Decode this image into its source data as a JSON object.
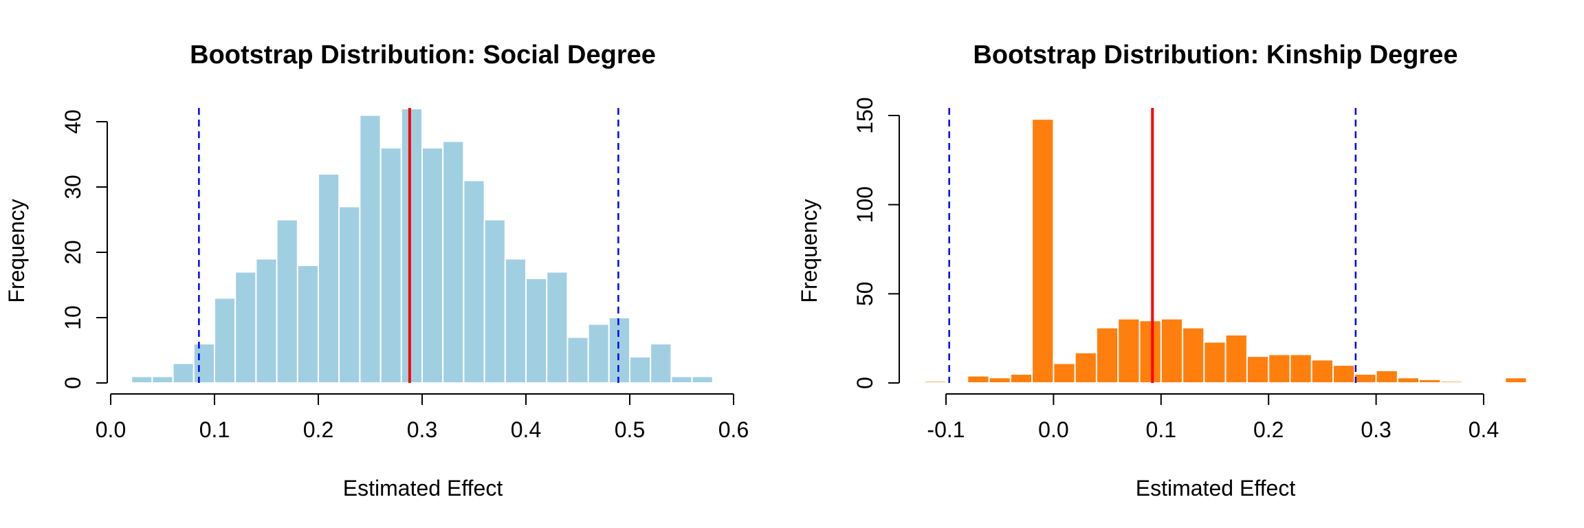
{
  "chart_data": [
    {
      "type": "histogram",
      "title": "Bootstrap Distribution: Social Degree",
      "xlabel": "Estimated Effect",
      "ylabel": "Frequency",
      "xlim": [
        0.0,
        0.6
      ],
      "ylim": [
        0,
        42
      ],
      "x_ticks": [
        0.0,
        0.1,
        0.2,
        0.3,
        0.4,
        0.5,
        0.6
      ],
      "x_tick_labels": [
        "0.0",
        "0.1",
        "0.2",
        "0.3",
        "0.4",
        "0.5",
        "0.6"
      ],
      "y_ticks": [
        0,
        10,
        20,
        30,
        40
      ],
      "y_tick_labels": [
        "0",
        "10",
        "20",
        "30",
        "40"
      ],
      "bin_start": 0.02,
      "bin_width": 0.02,
      "counts": [
        1,
        1,
        3,
        6,
        13,
        17,
        19,
        25,
        18,
        32,
        27,
        41,
        36,
        42,
        36,
        37,
        31,
        25,
        19,
        16,
        17,
        7,
        9,
        10,
        4,
        6,
        1,
        1
      ],
      "bar_color": "#a1cfe2",
      "bar_border": "#ffffff",
      "estimate_line": {
        "x": 0.288,
        "color": "#ff0000"
      },
      "ci_lines": {
        "x": [
          0.085,
          0.489
        ],
        "color": "#0000ff"
      }
    },
    {
      "type": "histogram",
      "title": "Bootstrap Distribution: Kinship Degree",
      "xlabel": "Estimated Effect",
      "ylabel": "Frequency",
      "xlim": [
        -0.1,
        0.4
      ],
      "ylim": [
        0,
        150
      ],
      "x_ticks": [
        -0.1,
        0.0,
        0.1,
        0.2,
        0.3,
        0.4
      ],
      "x_tick_labels": [
        "-0.1",
        "0.0",
        "0.1",
        "0.2",
        "0.3",
        "0.4"
      ],
      "y_ticks": [
        0,
        50,
        100,
        150
      ],
      "y_tick_labels": [
        "0",
        "50",
        "100",
        "150"
      ],
      "bin_start": -0.12,
      "bin_width": 0.02,
      "counts": [
        1,
        0,
        4,
        3,
        5,
        148,
        11,
        17,
        31,
        36,
        35,
        36,
        31,
        23,
        27,
        15,
        16,
        16,
        13,
        10,
        5,
        7,
        3,
        2,
        1,
        0,
        0,
        3
      ],
      "bar_color": "#ff7f0e",
      "bar_border": "#ffffff",
      "estimate_line": {
        "x": 0.092,
        "color": "#ff0000"
      },
      "ci_lines": {
        "x": [
          -0.097,
          0.281
        ],
        "color": "#0000ff"
      }
    }
  ]
}
